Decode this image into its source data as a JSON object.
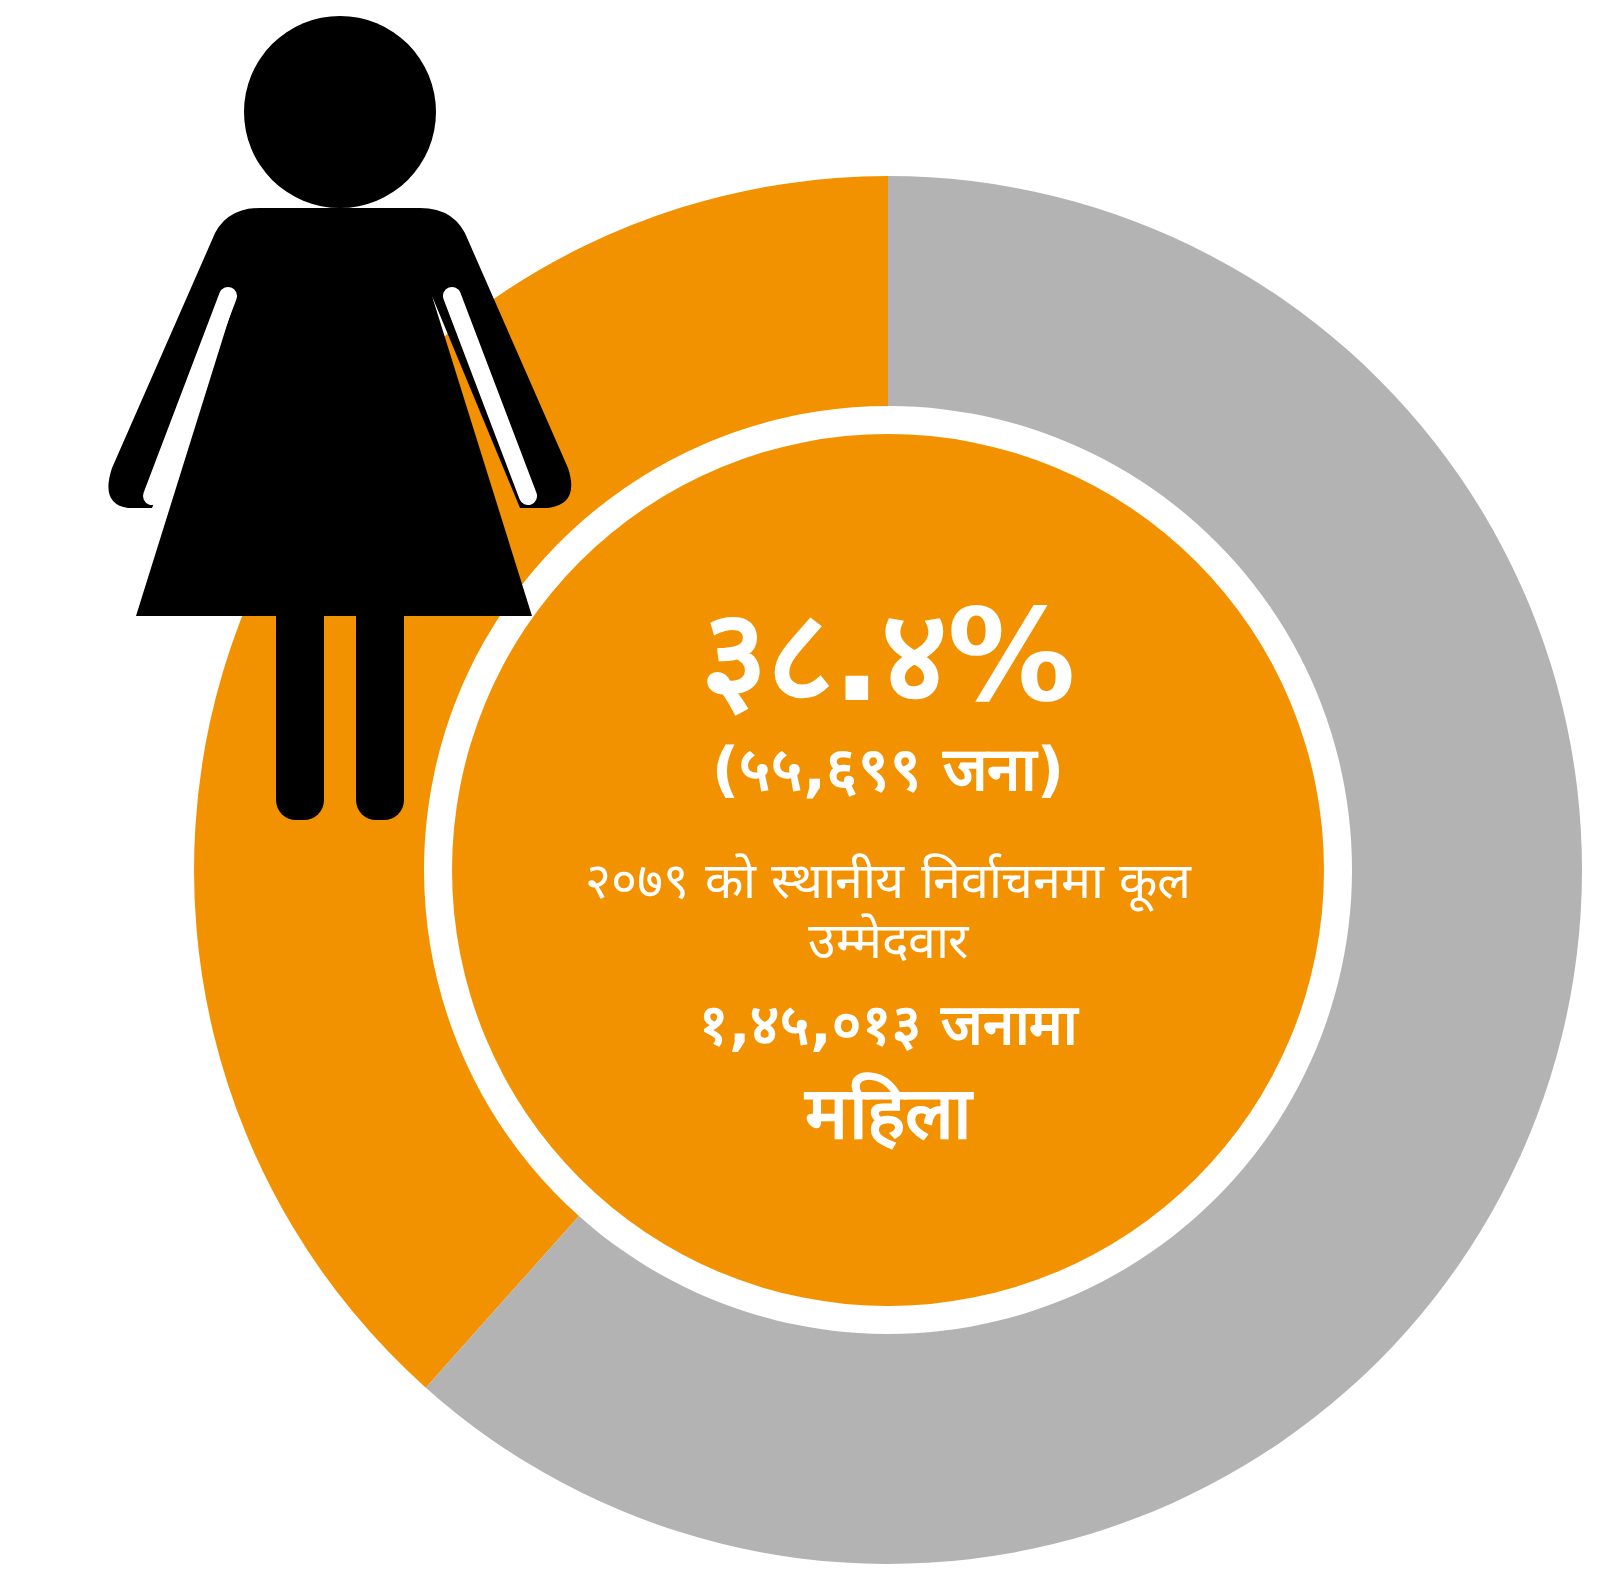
{
  "chart_data": {
    "type": "donut",
    "categories": [
      null,
      null
    ],
    "values": [
      38.4,
      61.6
    ],
    "colors": [
      "#f39200",
      "#b3b3b3"
    ],
    "annotations": [
      "३८.४%",
      "(५५,६९९ जना)",
      "२०७९ को स्थानीय निर्वाचनमा कूल उम्मेदवार",
      "१,४५,०१३ जनामा",
      "महिला"
    ]
  }
}
